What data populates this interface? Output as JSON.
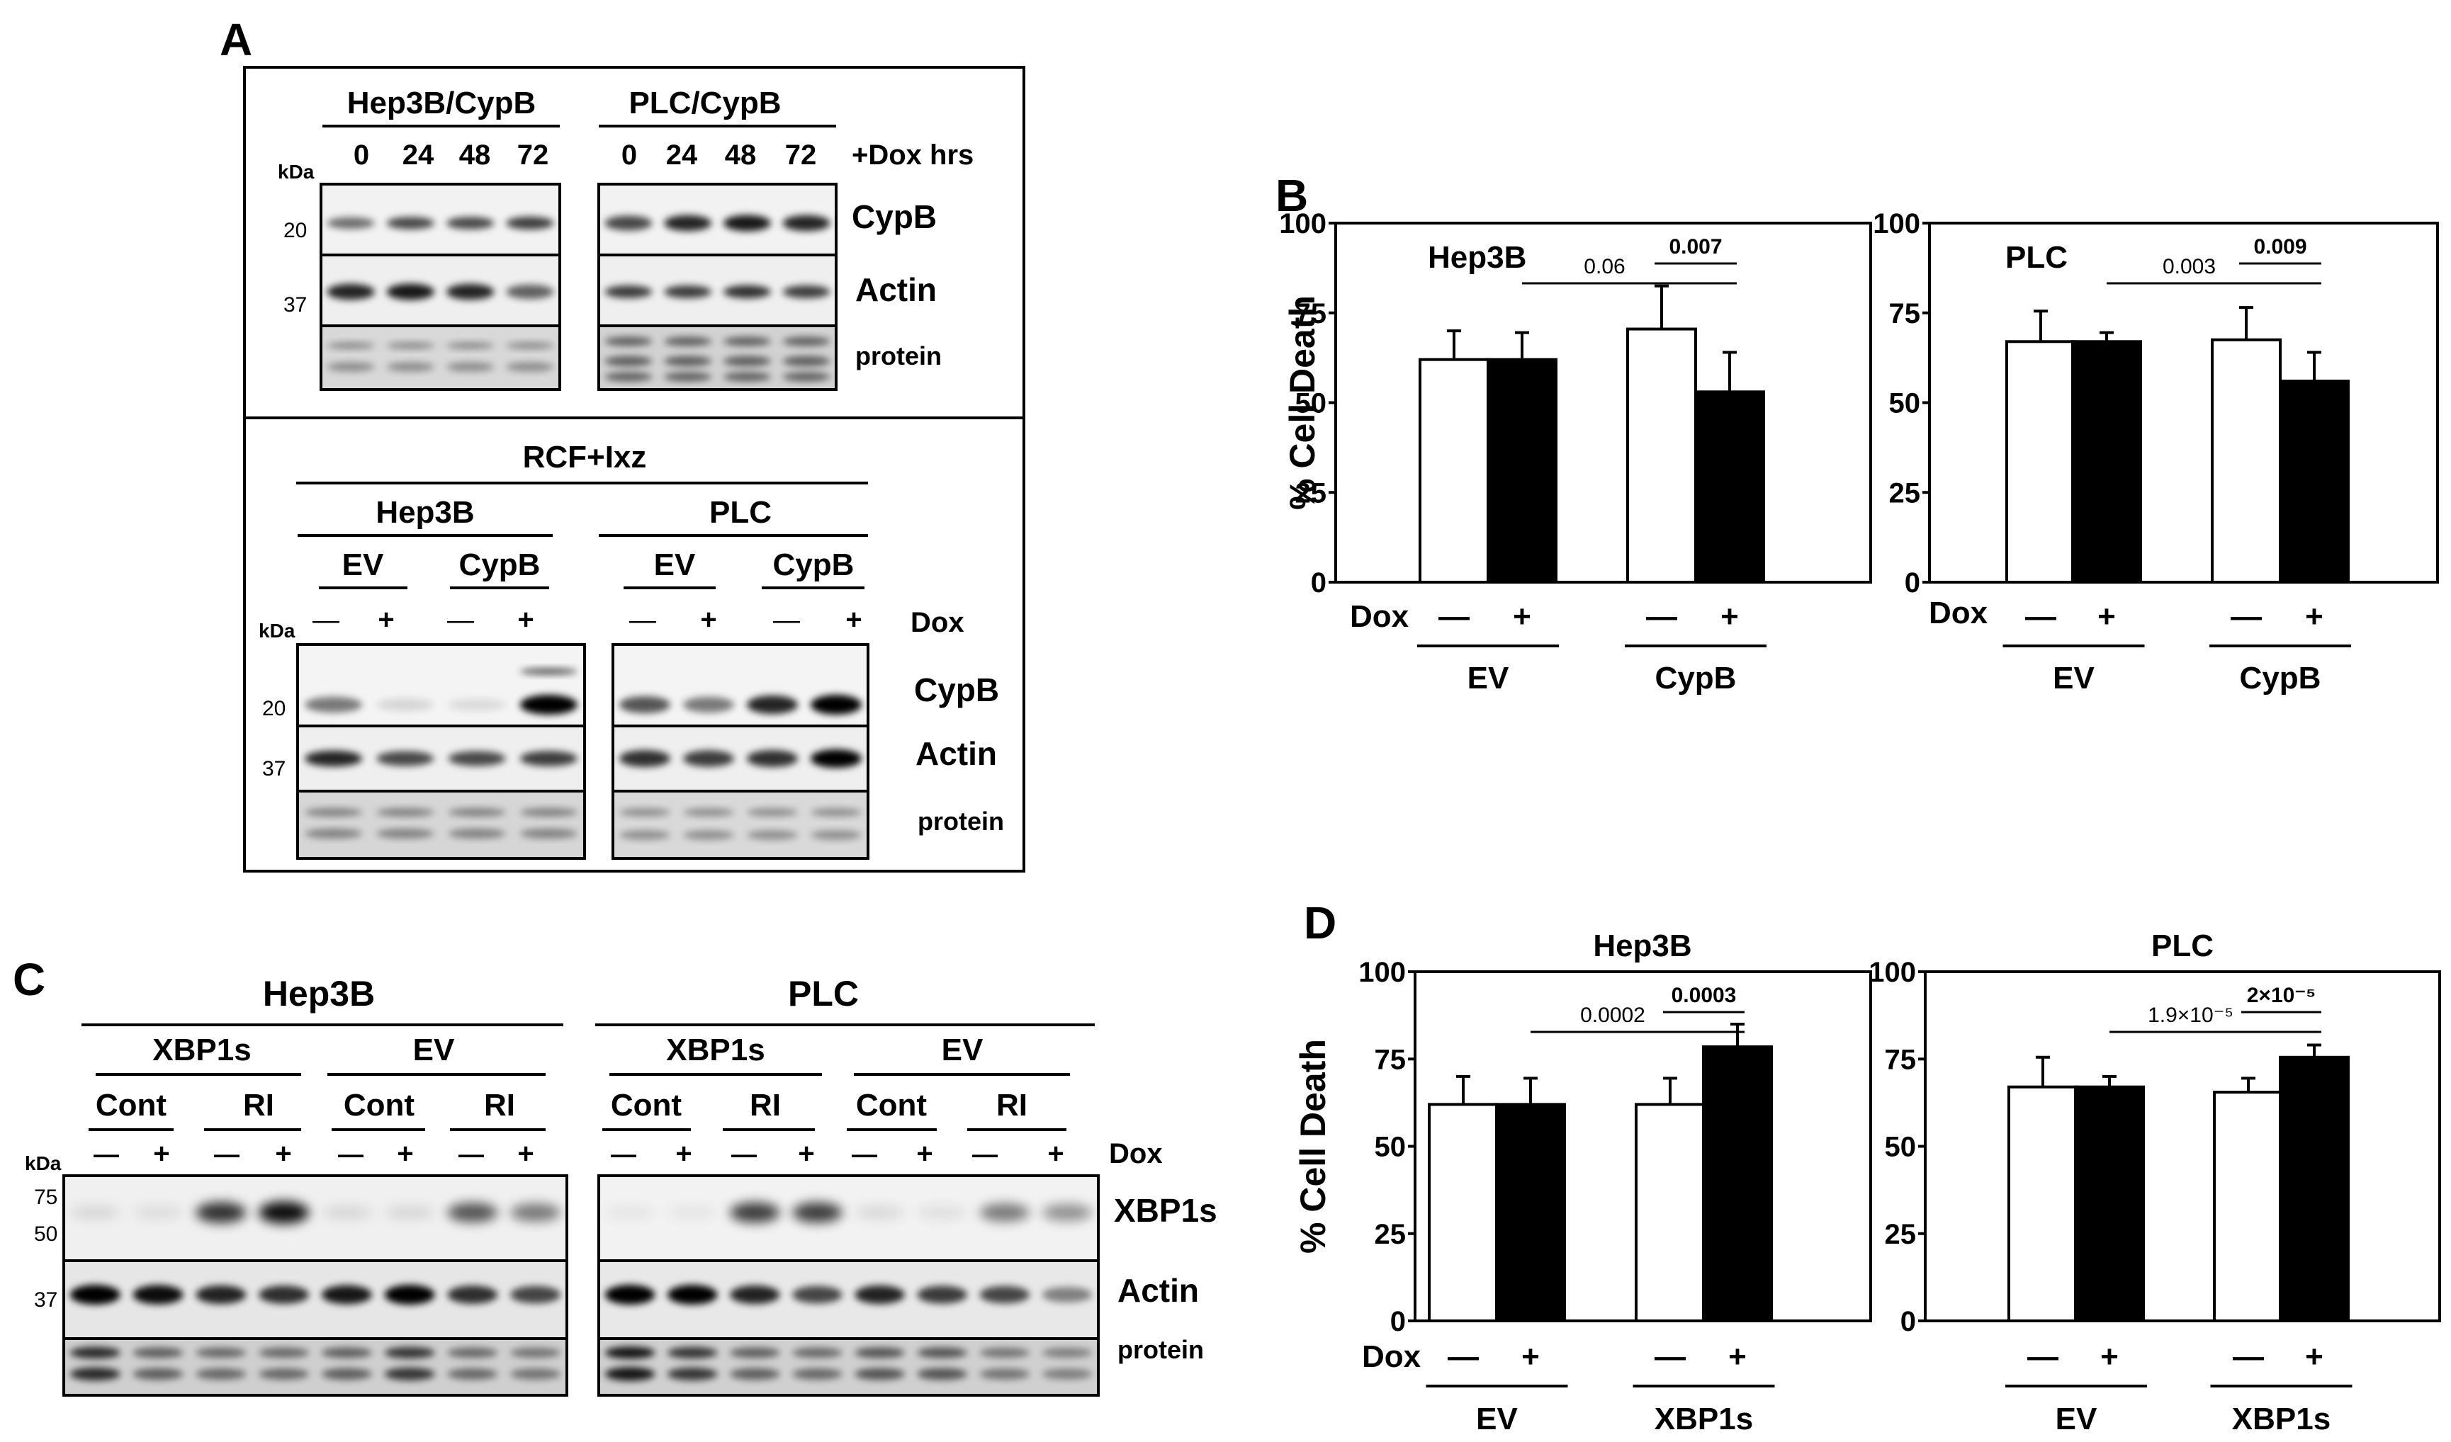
{
  "panels": {
    "A": {
      "letter": "A",
      "top": {
        "groups": [
          "Hep3B/CypB",
          "PLC/CypB"
        ],
        "times": [
          "0",
          "24",
          "48",
          "72"
        ],
        "treatment": "+Dox hrs",
        "kda": "kDa",
        "markers": [
          "20",
          "37"
        ],
        "rows": [
          "CypB",
          "Actin",
          "protein"
        ]
      },
      "bottom": {
        "title": "RCF+Ixz",
        "cells": [
          "Hep3B",
          "PLC"
        ],
        "vectors": [
          "EV",
          "CypB"
        ],
        "signs": [
          "—",
          "+"
        ],
        "treatment": "Dox",
        "kda": "kDa",
        "markers": [
          "20",
          "37"
        ],
        "rows": [
          "CypB",
          "Actin",
          "protein"
        ]
      }
    },
    "B": {
      "letter": "B",
      "treatment": "Dox",
      "signs": [
        "—",
        "+"
      ],
      "groups": [
        "EV",
        "CypB"
      ]
    },
    "C": {
      "letter": "C",
      "cells": [
        "Hep3B",
        "PLC"
      ],
      "vectors": [
        "XBP1s",
        "EV"
      ],
      "conds": [
        "Cont",
        "RI"
      ],
      "signs": [
        "—",
        "+"
      ],
      "treatment": "Dox",
      "kda": "kDa",
      "markers": [
        "75",
        "50",
        "37"
      ],
      "rows": [
        "XBP1s",
        "Actin",
        "protein"
      ]
    },
    "D": {
      "letter": "D",
      "treatment": "Dox",
      "signs": [
        "—",
        "+"
      ],
      "groups": [
        "EV",
        "XBP1s"
      ]
    }
  },
  "chart_data": [
    {
      "type": "bar",
      "panel": "B",
      "title": "Hep3B",
      "ylabel": "% Cell Death",
      "ylim": [
        0,
        100
      ],
      "yticks": [
        "0",
        "25",
        "50",
        "75",
        "100"
      ],
      "categories": [
        "EV —",
        "EV +",
        "CypB —",
        "CypB +"
      ],
      "series": [
        {
          "values": [
            62,
            62,
            70.5,
            53
          ],
          "errors": [
            8,
            7.5,
            12,
            11
          ]
        }
      ],
      "bar_colors": [
        "#ffffff",
        "#000000",
        "#ffffff",
        "#000000"
      ],
      "annotations": [
        {
          "text": "0.06",
          "from": 1,
          "to": 3
        },
        {
          "text": "0.007",
          "from": 2,
          "to": 3
        }
      ]
    },
    {
      "type": "bar",
      "panel": "B",
      "title": "PLC",
      "ylabel": "",
      "ylim": [
        0,
        100
      ],
      "yticks": [
        "0",
        "25",
        "50",
        "75",
        "100"
      ],
      "categories": [
        "EV —",
        "EV +",
        "CypB —",
        "CypB +"
      ],
      "series": [
        {
          "values": [
            67,
            67,
            67.5,
            56
          ],
          "errors": [
            8.5,
            2.5,
            9,
            8
          ]
        }
      ],
      "bar_colors": [
        "#ffffff",
        "#000000",
        "#ffffff",
        "#000000"
      ],
      "annotations": [
        {
          "text": "0.003",
          "from": 1,
          "to": 3
        },
        {
          "text": "0.009",
          "from": 2,
          "to": 3
        }
      ]
    },
    {
      "type": "bar",
      "panel": "D",
      "title": "Hep3B",
      "ylabel": "% Cell Death",
      "ylim": [
        0,
        100
      ],
      "yticks": [
        "0",
        "25",
        "50",
        "75",
        "100"
      ],
      "categories": [
        "EV —",
        "EV +",
        "XBP1s —",
        "XBP1s +"
      ],
      "series": [
        {
          "values": [
            62,
            62,
            62,
            78.5
          ],
          "errors": [
            8,
            7.5,
            7.5,
            6.5
          ]
        }
      ],
      "bar_colors": [
        "#ffffff",
        "#000000",
        "#ffffff",
        "#000000"
      ],
      "annotations": [
        {
          "text": "0.0002",
          "from": 1,
          "to": 3
        },
        {
          "text": "0.0003",
          "from": 2,
          "to": 3
        }
      ]
    },
    {
      "type": "bar",
      "panel": "D",
      "title": "PLC",
      "ylabel": "",
      "ylim": [
        0,
        100
      ],
      "yticks": [
        "0",
        "25",
        "50",
        "75",
        "100"
      ],
      "categories": [
        "EV —",
        "EV +",
        "XBP1s —",
        "XBP1s +"
      ],
      "series": [
        {
          "values": [
            67,
            67,
            65.5,
            75.5
          ],
          "errors": [
            8.5,
            3,
            4,
            3.5
          ]
        }
      ],
      "bar_colors": [
        "#ffffff",
        "#000000",
        "#ffffff",
        "#000000"
      ],
      "annotations": [
        {
          "text": "1.9×10⁻⁵",
          "from": 1,
          "to": 3
        },
        {
          "text": "2×10⁻⁵",
          "from": 2,
          "to": 3
        }
      ]
    }
  ]
}
